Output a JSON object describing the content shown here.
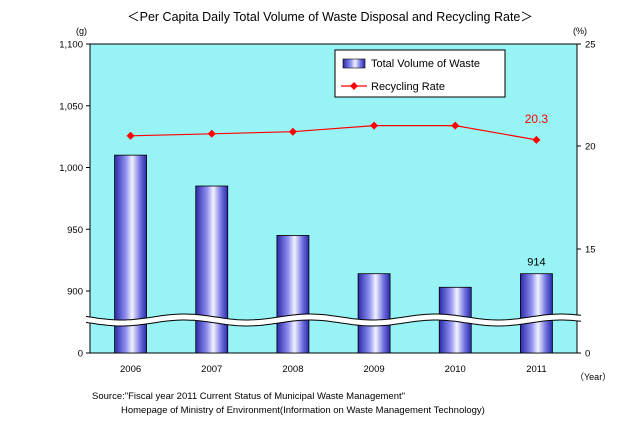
{
  "chart_data": {
    "type": "bar+line",
    "title": "＜Per Capita Daily Total Volume of Waste Disposal and Recycling Rate＞",
    "categories": [
      "2006",
      "2007",
      "2008",
      "2009",
      "2010",
      "2011"
    ],
    "x_unit": "（Year）",
    "y_left": {
      "unit": "(g)",
      "ticks": [
        {
          "value": 1100,
          "label": "1,100"
        },
        {
          "value": 1050,
          "label": "1,050"
        },
        {
          "value": 1000,
          "label": "1,000"
        },
        {
          "value": 950,
          "label": "950"
        },
        {
          "value": 900,
          "label": "900"
        },
        {
          "value": 0,
          "label": "0"
        }
      ],
      "ylim": [
        880,
        1100
      ],
      "axis_break": true
    },
    "y_right": {
      "unit": "(%)",
      "ticks": [
        {
          "value": 25,
          "label": "25"
        },
        {
          "value": 20,
          "label": "20"
        },
        {
          "value": 15,
          "label": "15"
        },
        {
          "value": 0,
          "label": "0"
        }
      ],
      "axis_break": true
    },
    "series": [
      {
        "name": "Total Volume of Waste",
        "type": "bar",
        "axis": "left",
        "values": [
          1010,
          985,
          945,
          914,
          903,
          914
        ],
        "data_labels": [
          null,
          null,
          null,
          null,
          null,
          "914"
        ],
        "color": "#3838c8"
      },
      {
        "name": "Recycling Rate",
        "type": "line",
        "axis": "right",
        "values": [
          20.5,
          20.6,
          20.7,
          21.0,
          21.0,
          20.3
        ],
        "data_labels": [
          null,
          null,
          null,
          null,
          null,
          "20.3"
        ],
        "color": "#ff0000"
      }
    ],
    "legend": "top-right inside plot",
    "grid": false,
    "plot_background": "#98f4f4"
  },
  "source": {
    "line1": "Source:\"Fiscal year 2011 Current Status of Municipal Waste Management\"",
    "line2": "Homepage of Ministry of Environment(Information on Waste Management Technology)"
  }
}
